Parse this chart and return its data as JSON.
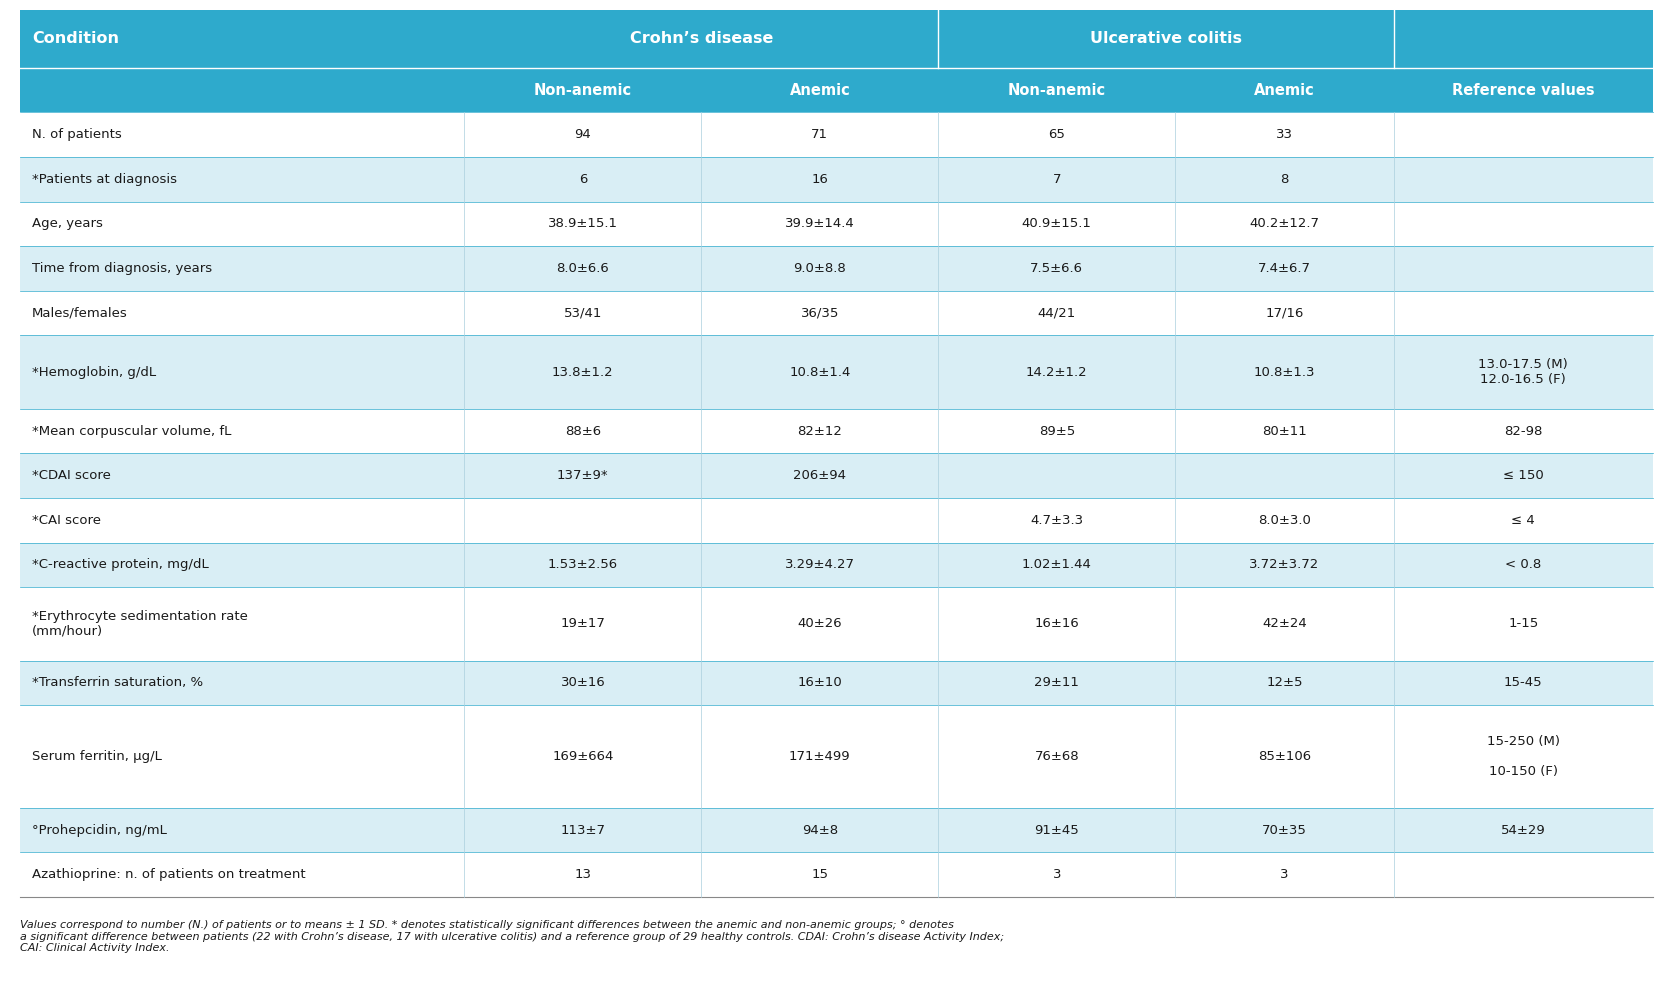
{
  "header_bg": "#2EAACC",
  "header_text_color": "#FFFFFF",
  "row_alt1_bg": "#FFFFFF",
  "row_alt2_bg": "#D9EEF5",
  "text_color": "#1a1a1a",
  "col_group1_header": "Crohn’s disease",
  "col_group2_header": "Ulcerative colitis",
  "subheaders": [
    "Non-anemic",
    "Anemic",
    "Non-anemic",
    "Anemic",
    "Reference values"
  ],
  "rows": [
    {
      "condition": "N. of patients",
      "cd_nonanemic": "94",
      "cd_anemic": "71",
      "uc_nonanemic": "65",
      "uc_anemic": "33",
      "reference": "",
      "shaded": false,
      "two_line_cond": false,
      "tall_ref": false
    },
    {
      "condition": "*Patients at diagnosis",
      "cd_nonanemic": "6",
      "cd_anemic": "16",
      "uc_nonanemic": "7",
      "uc_anemic": "8",
      "reference": "",
      "shaded": true,
      "two_line_cond": false,
      "tall_ref": false
    },
    {
      "condition": "Age, years",
      "cd_nonanemic": "38.9±15.1",
      "cd_anemic": "39.9±14.4",
      "uc_nonanemic": "40.9±15.1",
      "uc_anemic": "40.2±12.7",
      "reference": "",
      "shaded": false,
      "two_line_cond": false,
      "tall_ref": false
    },
    {
      "condition": "Time from diagnosis, years",
      "cd_nonanemic": "8.0±6.6",
      "cd_anemic": "9.0±8.8",
      "uc_nonanemic": "7.5±6.6",
      "uc_anemic": "7.4±6.7",
      "reference": "",
      "shaded": true,
      "two_line_cond": false,
      "tall_ref": false
    },
    {
      "condition": "Males/females",
      "cd_nonanemic": "53/41",
      "cd_anemic": "36/35",
      "uc_nonanemic": "44/21",
      "uc_anemic": "17/16",
      "reference": "",
      "shaded": false,
      "two_line_cond": false,
      "tall_ref": false
    },
    {
      "condition": "*Hemoglobin, g/dL",
      "cd_nonanemic": "13.8±1.2",
      "cd_anemic": "10.8±1.4",
      "uc_nonanemic": "14.2±1.2",
      "uc_anemic": "10.8±1.3",
      "reference": "13.0-17.5 (M)\n12.0-16.5 (F)",
      "shaded": true,
      "two_line_cond": false,
      "tall_ref": true
    },
    {
      "condition": "*Mean corpuscular volume, fL",
      "cd_nonanemic": "88±6",
      "cd_anemic": "82±12",
      "uc_nonanemic": "89±5",
      "uc_anemic": "80±11",
      "reference": "82-98",
      "shaded": false,
      "two_line_cond": false,
      "tall_ref": false
    },
    {
      "condition": "*CDAI score",
      "cd_nonanemic": "137±9*",
      "cd_anemic": "206±94",
      "uc_nonanemic": "",
      "uc_anemic": "",
      "reference": "≤ 150",
      "shaded": true,
      "two_line_cond": false,
      "tall_ref": false
    },
    {
      "condition": "*CAI score",
      "cd_nonanemic": "",
      "cd_anemic": "",
      "uc_nonanemic": "4.7±3.3",
      "uc_anemic": "8.0±3.0",
      "reference": "≤ 4",
      "shaded": false,
      "two_line_cond": false,
      "tall_ref": false
    },
    {
      "condition": "*C-reactive protein, mg/dL",
      "cd_nonanemic": "1.53±2.56",
      "cd_anemic": "3.29±4.27",
      "uc_nonanemic": "1.02±1.44",
      "uc_anemic": "3.72±3.72",
      "reference": "< 0.8",
      "shaded": true,
      "two_line_cond": false,
      "tall_ref": false
    },
    {
      "condition": "*Erythrocyte sedimentation rate\n(mm/hour)",
      "cd_nonanemic": "19±17",
      "cd_anemic": "40±26",
      "uc_nonanemic": "16±16",
      "uc_anemic": "42±24",
      "reference": "1-15",
      "shaded": false,
      "two_line_cond": true,
      "tall_ref": false
    },
    {
      "condition": "*Transferrin saturation, %",
      "cd_nonanemic": "30±16",
      "cd_anemic": "16±10",
      "uc_nonanemic": "29±11",
      "uc_anemic": "12±5",
      "reference": "15-45",
      "shaded": true,
      "two_line_cond": false,
      "tall_ref": false
    },
    {
      "condition": "Serum ferritin, μg/L",
      "cd_nonanemic": "169±664",
      "cd_anemic": "171±499",
      "uc_nonanemic": "76±68",
      "uc_anemic": "85±106",
      "reference": "15-250 (M)\n \n10-150 (F)",
      "shaded": false,
      "two_line_cond": false,
      "tall_ref": true
    },
    {
      "condition": "°Prohepcidin, ng/mL",
      "cd_nonanemic": "113±7",
      "cd_anemic": "94±8",
      "uc_nonanemic": "91±45",
      "uc_anemic": "70±35",
      "reference": "54±29",
      "shaded": true,
      "two_line_cond": false,
      "tall_ref": false
    },
    {
      "condition": "Azathioprine: n. of patients on treatment",
      "cd_nonanemic": "13",
      "cd_anemic": "15",
      "uc_nonanemic": "3",
      "uc_anemic": "3",
      "reference": "",
      "shaded": false,
      "two_line_cond": false,
      "tall_ref": false
    }
  ],
  "footnote": "Values correspond to number (N.) of patients or to means ± 1 SD. * denotes statistically significant differences between the anemic and non-anemic groups; ° denotes\na significant difference between patients (22 with Crohn’s disease, 17 with ulcerative colitis) and a reference group of 29 healthy controls. CDAI: Crohn’s disease Activity Index;\nCAI: Clinical Activity Index."
}
